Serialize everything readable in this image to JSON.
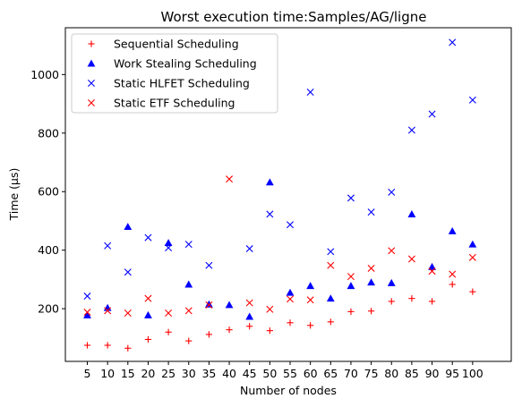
{
  "chart_data": {
    "type": "scatter",
    "title": "Worst execution time:Samples/AG/ligne",
    "xlabel": "Number of nodes",
    "ylabel": "Time (µs)",
    "categories": [
      "5",
      "10",
      "15",
      "20",
      "25",
      "30",
      "35",
      "40",
      "45",
      "50",
      "55",
      "60",
      "65",
      "70",
      "75",
      "80",
      "85",
      "90",
      "95",
      "100"
    ],
    "ylim": [
      20,
      1160
    ],
    "yticks": [
      200,
      400,
      600,
      800,
      1000
    ],
    "grid": false,
    "legend_position": "top-left",
    "series": [
      {
        "name": "Sequential Scheduling",
        "marker": "plus",
        "color": "#ff0000",
        "values": [
          75,
          75,
          65,
          95,
          120,
          90,
          112,
          128,
          140,
          125,
          152,
          143,
          155,
          190,
          192,
          225,
          235,
          225,
          283,
          258
        ]
      },
      {
        "name": "Work Stealing Scheduling",
        "marker": "triangle",
        "color": "#0000ff",
        "values": [
          178,
          203,
          480,
          178,
          425,
          283,
          215,
          213,
          173,
          632,
          255,
          278,
          235,
          278,
          290,
          288,
          523,
          343,
          465,
          420
        ]
      },
      {
        "name": "Static HLFET Scheduling",
        "marker": "x",
        "color": "#0000ff",
        "values": [
          243,
          415,
          325,
          443,
          408,
          420,
          348,
          null,
          405,
          523,
          487,
          940,
          395,
          578,
          530,
          598,
          810,
          865,
          1110,
          913
        ]
      },
      {
        "name": "Static ETF Scheduling",
        "marker": "x",
        "color": "#ff0000",
        "values": [
          188,
          193,
          185,
          235,
          185,
          193,
          213,
          643,
          220,
          198,
          233,
          230,
          348,
          310,
          338,
          398,
          370,
          328,
          318,
          375
        ]
      }
    ]
  }
}
